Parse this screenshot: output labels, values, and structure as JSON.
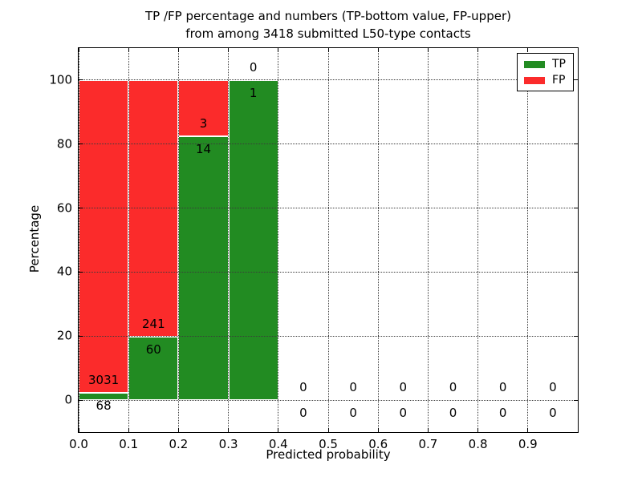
{
  "chart_data": {
    "type": "bar",
    "stacked": true,
    "title_line1": "TP /FP percentage and numbers (TP-bottom value, FP-upper)",
    "title_line2": "from among 3418 submitted L50-type contacts",
    "xlabel": "Predicted probability",
    "ylabel": "Percentage",
    "xlim": [
      0.0,
      1.0
    ],
    "ylim": [
      -10,
      110
    ],
    "bar_width": 0.1,
    "grid": "dotted",
    "yticks": [
      0,
      20,
      40,
      60,
      80,
      100
    ],
    "ytick_labels": [
      "0",
      "20",
      "40",
      "60",
      "80",
      "100"
    ],
    "xticks": [
      0.0,
      0.1,
      0.2,
      0.3,
      0.4,
      0.5,
      0.6,
      0.7,
      0.8,
      0.9
    ],
    "xtick_labels": [
      "0.0",
      "0.1",
      "0.2",
      "0.3",
      "0.4",
      "0.5",
      "0.6",
      "0.7",
      "0.8",
      "0.9"
    ],
    "colors": {
      "tp": "#228b22",
      "fp": "#fb2b2b",
      "bar_edge": "#ffffff",
      "grid": "#3a3a3a",
      "axes": "#000000",
      "text": "#000000"
    },
    "legend": {
      "position": "upper right",
      "entries": [
        {
          "label": "TP",
          "color_key": "tp"
        },
        {
          "label": "FP",
          "color_key": "fp"
        }
      ]
    },
    "bins": [
      {
        "x0": 0.0,
        "tp_count": 68,
        "fp_count": 3031,
        "tp_pct": 2.19,
        "fp_pct": 97.81
      },
      {
        "x0": 0.1,
        "tp_count": 60,
        "fp_count": 241,
        "tp_pct": 19.93,
        "fp_pct": 80.07
      },
      {
        "x0": 0.2,
        "tp_count": 14,
        "fp_count": 3,
        "tp_pct": 82.35,
        "fp_pct": 17.65
      },
      {
        "x0": 0.3,
        "tp_count": 1,
        "fp_count": 0,
        "tp_pct": 100.0,
        "fp_pct": 0.0
      },
      {
        "x0": 0.4,
        "tp_count": 0,
        "fp_count": 0,
        "tp_pct": 0.0,
        "fp_pct": 0.0
      },
      {
        "x0": 0.5,
        "tp_count": 0,
        "fp_count": 0,
        "tp_pct": 0.0,
        "fp_pct": 0.0
      },
      {
        "x0": 0.6,
        "tp_count": 0,
        "fp_count": 0,
        "tp_pct": 0.0,
        "fp_pct": 0.0
      },
      {
        "x0": 0.7,
        "tp_count": 0,
        "fp_count": 0,
        "tp_pct": 0.0,
        "fp_pct": 0.0
      },
      {
        "x0": 0.8,
        "tp_count": 0,
        "fp_count": 0,
        "tp_pct": 0.0,
        "fp_pct": 0.0
      },
      {
        "x0": 0.9,
        "tp_count": 0,
        "fp_count": 0,
        "tp_pct": 0.0,
        "fp_pct": 0.0
      }
    ]
  }
}
